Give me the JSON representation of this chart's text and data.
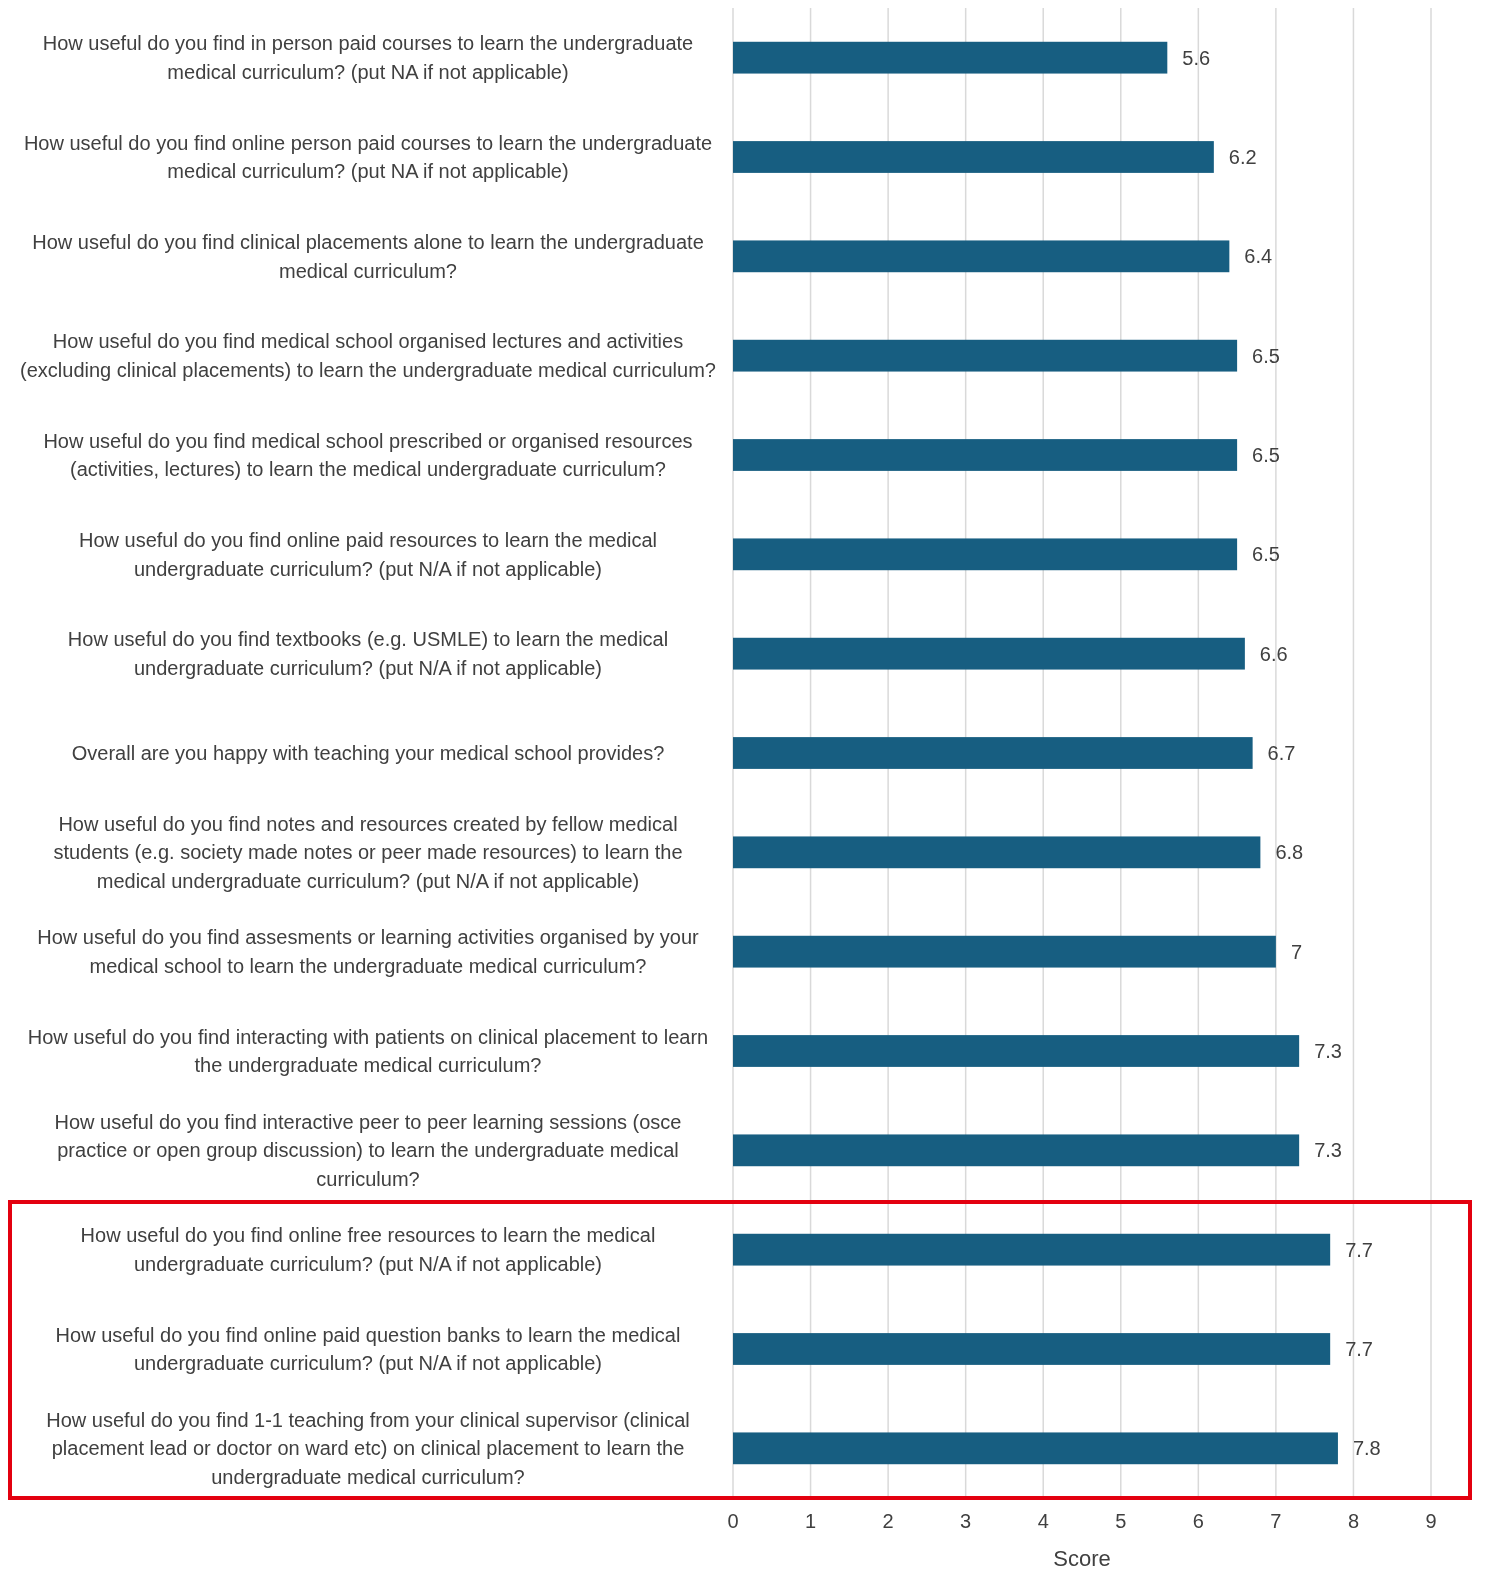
{
  "chart_data": {
    "type": "bar",
    "orientation": "horizontal",
    "xlabel": "Score",
    "categories": [
      "How useful do you find in person paid courses to learn the undergraduate medical curriculum? (put NA if not applicable)",
      "How useful do you find online person paid courses to learn the undergraduate medical curriculum? (put NA if not applicable)",
      "How useful do you find clinical placements alone to learn the undergraduate medical curriculum?",
      "How useful do you find medical school organised lectures and activities (excluding clinical placements) to learn the undergraduate medical curriculum?",
      "How useful do you find medical school prescribed or organised resources (activities, lectures) to learn the medical undergraduate curriculum?",
      "How useful do you find online paid resources to learn the medical undergraduate curriculum? (put N/A if not applicable)",
      "How useful do you find textbooks (e.g. USMLE) to learn the medical undergraduate curriculum? (put N/A if not applicable)",
      "Overall are you happy with teaching your medical school provides?",
      "How useful do you find notes and resources created by fellow medical students (e.g. society made notes or peer made resources) to learn the medical undergraduate curriculum?  (put N/A if not applicable)",
      "How useful do you find assesments or learning activities organised by your medical school to learn the undergraduate medical curriculum?",
      "How useful do you find interacting with patients on clinical placement to learn the undergraduate medical curriculum?",
      "How useful do you find interactive peer to peer learning sessions (osce practice or open group discussion)  to learn the undergraduate medical curriculum?",
      "How useful do you find online free resources to learn the medical undergraduate curriculum? (put N/A if not applicable)",
      "How useful do you find online paid question banks to learn the medical undergraduate curriculum? (put N/A if not applicable)",
      "How useful do you find 1-1 teaching from your clinical supervisor (clinical placement lead or doctor on ward etc) on clinical placement to learn the undergraduate medical curriculum?"
    ],
    "values": [
      5.6,
      6.2,
      6.4,
      6.5,
      6.5,
      6.5,
      6.6,
      6.7,
      6.8,
      7,
      7.3,
      7.3,
      7.7,
      7.7,
      7.8
    ],
    "color": "#175e81",
    "xlim": [
      0,
      9
    ],
    "xticks": [
      0,
      1,
      2,
      3,
      4,
      5,
      6,
      7,
      8,
      9
    ],
    "grid": "x",
    "data_labels": true
  }
}
